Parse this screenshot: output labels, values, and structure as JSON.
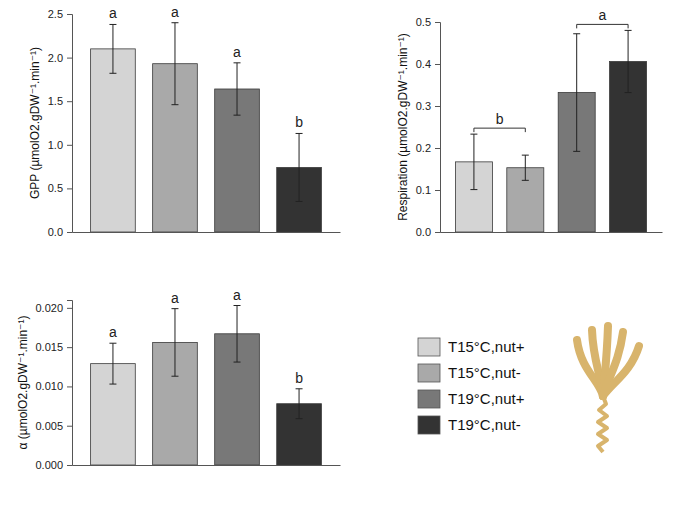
{
  "chart_data": [
    {
      "type": "bar",
      "y_label": "GPP (µmolO2.gDW⁻¹.min⁻¹)",
      "categories": [
        null
      ],
      "ylim": [
        0,
        2.5
      ],
      "yticks": [
        {
          "value": 0,
          "label": "0.0"
        },
        0.5,
        {
          "value": 1,
          "label": "1.0"
        },
        1.5,
        {
          "value": 2,
          "label": "2.0"
        },
        2.5
      ],
      "tick_labels": "y",
      "legend": "lower right",
      "series": [
        {
          "name": "T15°C,nut+",
          "color": "#d4d4d4",
          "values": [
            2.1
          ],
          "errors": [
            0.28
          ]
        },
        {
          "name": "T15°C,nut-",
          "color": "#a9a9a9",
          "values": [
            1.93
          ],
          "errors": [
            0.47
          ]
        },
        {
          "name": "T19°C,nut+",
          "color": "#787878",
          "values": [
            1.64
          ],
          "errors": [
            0.3
          ]
        },
        {
          "name": "T19°C,nut-",
          "color": "#333333",
          "values": [
            0.74
          ],
          "errors": [
            0.39
          ]
        }
      ],
      "significance": [
        {
          "text": "a",
          "members": [
            0
          ]
        },
        {
          "text": "a",
          "members": [
            1
          ]
        },
        {
          "text": "a",
          "members": [
            2
          ]
        },
        {
          "text": "b",
          "members": [
            3
          ]
        }
      ]
    },
    {
      "type": "bar",
      "y_label": "Respiration (µmolO2.gDW⁻¹.min⁻¹)",
      "categories": [
        null
      ],
      "ylim": [
        0,
        0.5
      ],
      "yticks": [
        {
          "value": 0,
          "label": "0.0"
        },
        0.1,
        0.2,
        0.3,
        0.4,
        0.5
      ],
      "tick_labels": "y",
      "series": [
        {
          "color": "#d4d4d4",
          "values": [
            0.167
          ],
          "errors": [
            0.066
          ]
        },
        {
          "color": "#a9a9a9",
          "values": [
            0.153
          ],
          "errors": [
            0.03
          ]
        },
        {
          "color": "#787878",
          "values": [
            0.332
          ],
          "errors": [
            0.14
          ]
        },
        {
          "color": "#333333",
          "values": [
            0.406
          ],
          "errors": [
            0.074
          ]
        }
      ],
      "significance": [
        {
          "text": "b",
          "members": [
            0,
            1
          ]
        },
        {
          "text": "a",
          "members": [
            2,
            3
          ]
        }
      ]
    },
    {
      "type": "bar",
      "y_label": "α (µmolO2.gDW⁻¹.min⁻¹)",
      "categories": [
        null
      ],
      "ylim": [
        0,
        0.021
      ],
      "yticks": [
        {
          "value": 0,
          "label": "0.000"
        },
        0.005,
        {
          "value": 0.01,
          "label": "0.010"
        },
        0.015,
        {
          "value": 0.02,
          "label": "0.020"
        }
      ],
      "tick_labels": "y",
      "series": [
        {
          "color": "#d4d4d4",
          "values": [
            0.0129
          ],
          "errors": [
            0.0026
          ]
        },
        {
          "color": "#a9a9a9",
          "values": [
            0.0156
          ],
          "errors": [
            0.0043
          ]
        },
        {
          "color": "#787878",
          "values": [
            0.0167
          ],
          "errors": [
            0.0036
          ]
        },
        {
          "color": "#333333",
          "values": [
            0.0078
          ],
          "errors": [
            0.0019
          ]
        }
      ],
      "significance": [
        {
          "text": "a",
          "members": [
            0
          ]
        },
        {
          "text": "a",
          "members": [
            1
          ]
        },
        {
          "text": "a",
          "members": [
            2
          ]
        },
        {
          "text": "b",
          "members": [
            3
          ]
        }
      ]
    }
  ]
}
